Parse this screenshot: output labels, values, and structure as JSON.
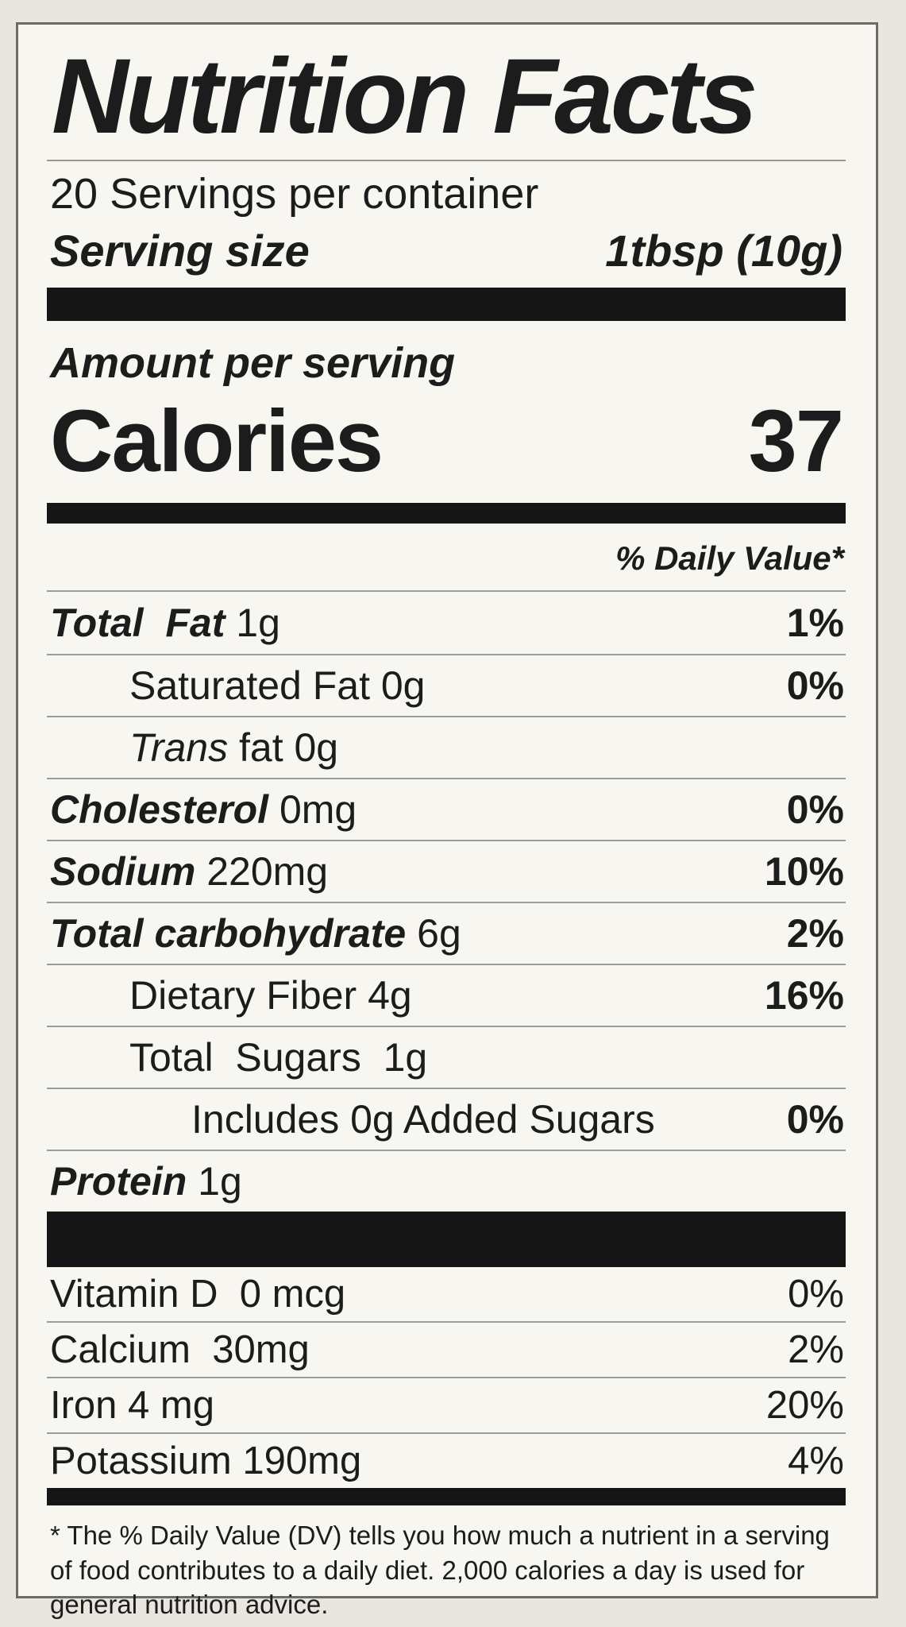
{
  "label": {
    "title": "Nutrition Facts",
    "servings_per_container": "20 Servings per container",
    "serving_size_label": "Serving size",
    "serving_size_value": "1tbsp (10g)",
    "amount_per_serving": "Amount per serving",
    "calories_label": "Calories",
    "calories_value": "37",
    "daily_value_header": "% Daily Value*",
    "nutrients": [
      {
        "parts": [
          {
            "t": "Total  Fat ",
            "s": "bi"
          },
          {
            "t": "1g",
            "s": "r"
          }
        ],
        "dv": "1%",
        "indent": 0
      },
      {
        "parts": [
          {
            "t": "Saturated Fat 0g",
            "s": "r"
          }
        ],
        "dv": "0%",
        "indent": 1
      },
      {
        "parts": [
          {
            "t": "Trans",
            "s": "i"
          },
          {
            "t": " fat 0g",
            "s": "r"
          }
        ],
        "dv": "",
        "indent": 1
      },
      {
        "parts": [
          {
            "t": "Cholesterol ",
            "s": "bi"
          },
          {
            "t": "0mg",
            "s": "r"
          }
        ],
        "dv": "0%",
        "indent": 0
      },
      {
        "parts": [
          {
            "t": "Sodium ",
            "s": "bi"
          },
          {
            "t": "220mg",
            "s": "r"
          }
        ],
        "dv": "10%",
        "indent": 0
      },
      {
        "parts": [
          {
            "t": "Total carbohydrate ",
            "s": "bi"
          },
          {
            "t": "6g",
            "s": "r"
          }
        ],
        "dv": "2%",
        "indent": 0
      },
      {
        "parts": [
          {
            "t": "Dietary Fiber 4g",
            "s": "r"
          }
        ],
        "dv": "16%",
        "indent": 1
      },
      {
        "parts": [
          {
            "t": "Total  Sugars  1g",
            "s": "r"
          }
        ],
        "dv": "",
        "indent": 1
      },
      {
        "parts": [
          {
            "t": "Includes 0g Added Sugars",
            "s": "r"
          }
        ],
        "dv": "0%",
        "indent": 2
      },
      {
        "parts": [
          {
            "t": "Protein ",
            "s": "bi"
          },
          {
            "t": "1g",
            "s": "r"
          }
        ],
        "dv": "",
        "indent": 0
      }
    ],
    "vitamins": [
      {
        "parts": [
          {
            "t": "Vitamin D  0 mcg",
            "s": "r"
          }
        ],
        "dv": "0%",
        "indent": 0
      },
      {
        "parts": [
          {
            "t": "Calcium  30mg",
            "s": "r"
          }
        ],
        "dv": "2%",
        "indent": 0
      },
      {
        "parts": [
          {
            "t": "Iron 4 mg",
            "s": "r"
          }
        ],
        "dv": "20%",
        "indent": 0
      },
      {
        "parts": [
          {
            "t": "Potassium 190mg",
            "s": "r"
          }
        ],
        "dv": "4%",
        "indent": 0
      }
    ],
    "footnote": "* The % Daily Value (DV) tells you how much a nutrient in a serving of food contributes to a daily diet. 2,000 calories a day is used for general nutrition advice."
  },
  "colors": {
    "paper": "#e9e6e0",
    "label_bg": "#f8f6f1",
    "ink": "#1c1c1c",
    "rule": "#9b9b97",
    "bar": "#161616"
  }
}
